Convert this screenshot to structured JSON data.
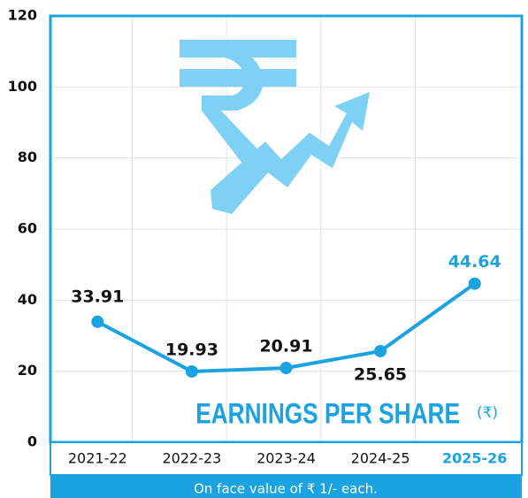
{
  "chart_data": {
    "type": "line",
    "title": "EARNINGS PER SHARE",
    "unit": "(₹)",
    "footnote": "On face value of  ₹ 1/- each.",
    "categories": [
      "2021-22",
      "2022-23",
      "2023-24",
      "2024-25",
      "2025-26"
    ],
    "values": [
      33.91,
      19.93,
      20.91,
      25.65,
      44.64
    ],
    "color": "#1aa3e0",
    "highlight": {
      "index": 4,
      "color": "#1aa3e0"
    },
    "ylim": [
      0,
      120
    ],
    "yticks": [
      0,
      20,
      40,
      60,
      80,
      100,
      120
    ],
    "grid": true
  }
}
